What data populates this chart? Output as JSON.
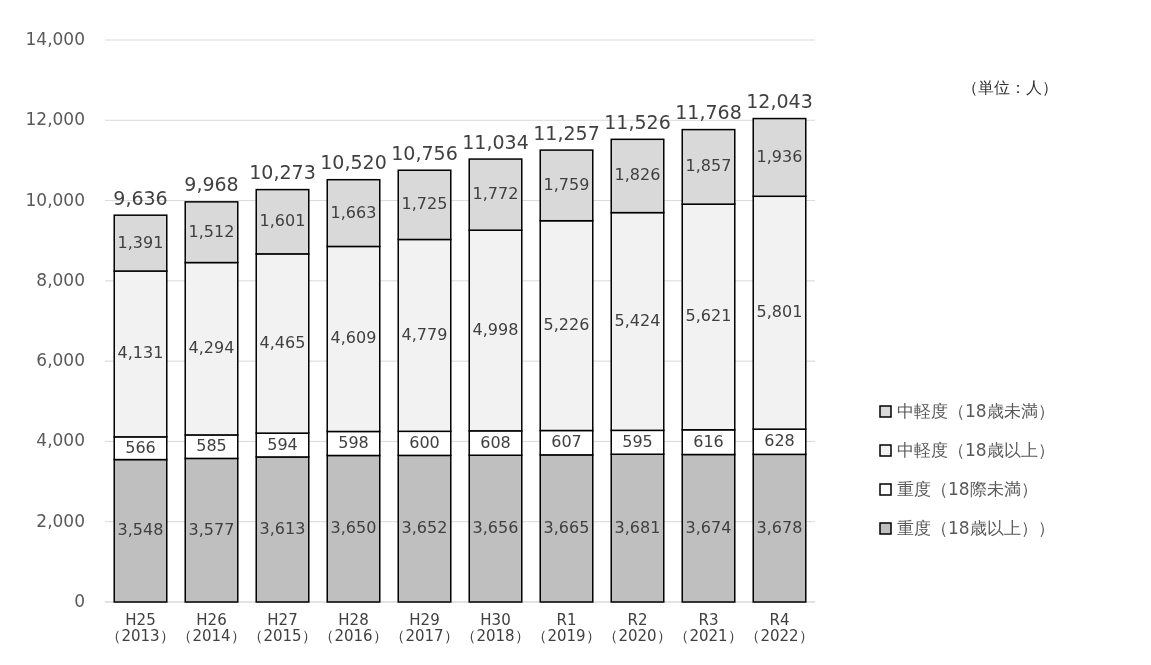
{
  "chart_data": {
    "type": "bar",
    "stacked": true,
    "categories": [
      "H25\n（2013）",
      "H26\n（2014）",
      "H27\n（2015）",
      "H28\n（2016）",
      "H29\n（2017）",
      "H30\n（2018）",
      "R1\n（2019）",
      "R2\n（2020）",
      "R3\n（2021）",
      "R4\n（2022）"
    ],
    "series": [
      {
        "name": "重度（18歳以上））",
        "color": "#bfbfbf",
        "values": [
          3548,
          3577,
          3613,
          3650,
          3652,
          3656,
          3665,
          3681,
          3674,
          3678
        ],
        "value_labels": [
          "3,548",
          "3,577",
          "3,613",
          "3,650",
          "3,652",
          "3,656",
          "3,665",
          "3,681",
          "3,674",
          "3,678"
        ]
      },
      {
        "name": "重度（18際未満）",
        "color": "#ffffff",
        "values": [
          566,
          585,
          594,
          598,
          600,
          608,
          607,
          595,
          616,
          628
        ],
        "value_labels": [
          "566",
          "585",
          "594",
          "598",
          "600",
          "608",
          "607",
          "595",
          "616",
          "628"
        ]
      },
      {
        "name": "中軽度（18歳以上）",
        "color": "#f2f2f2",
        "values": [
          4131,
          4294,
          4465,
          4609,
          4779,
          4998,
          5226,
          5424,
          5621,
          5801
        ],
        "value_labels": [
          "4,131",
          "4,294",
          "4,465",
          "4,609",
          "4,779",
          "4,998",
          "5,226",
          "5,424",
          "5,621",
          "5,801"
        ]
      },
      {
        "name": "中軽度（18歳未満）",
        "color": "#d9d9d9",
        "values": [
          1391,
          1512,
          1601,
          1663,
          1725,
          1772,
          1759,
          1826,
          1857,
          1936
        ],
        "value_labels": [
          "1,391",
          "1,512",
          "1,601",
          "1,663",
          "1,725",
          "1,772",
          "1,759",
          "1,826",
          "1,857",
          "1,936"
        ]
      }
    ],
    "totals": [
      "9,636",
      "9,968",
      "10,273",
      "10,520",
      "10,756",
      "11,034",
      "11,257",
      "11,526",
      "11,768",
      "12,043"
    ],
    "ylim": [
      0,
      14000
    ],
    "yticks": [
      {
        "value": 0,
        "label": "0"
      },
      {
        "value": 2000,
        "label": "2,000"
      },
      {
        "value": 4000,
        "label": "4,000"
      },
      {
        "value": 6000,
        "label": "6,000"
      },
      {
        "value": 8000,
        "label": "8,000"
      },
      {
        "value": 10000,
        "label": "10,000"
      },
      {
        "value": 12000,
        "label": "12,000"
      },
      {
        "value": 14000,
        "label": "14,000"
      }
    ],
    "grid": "y",
    "legend": "right",
    "annotations": [
      "（単位：人）"
    ]
  }
}
